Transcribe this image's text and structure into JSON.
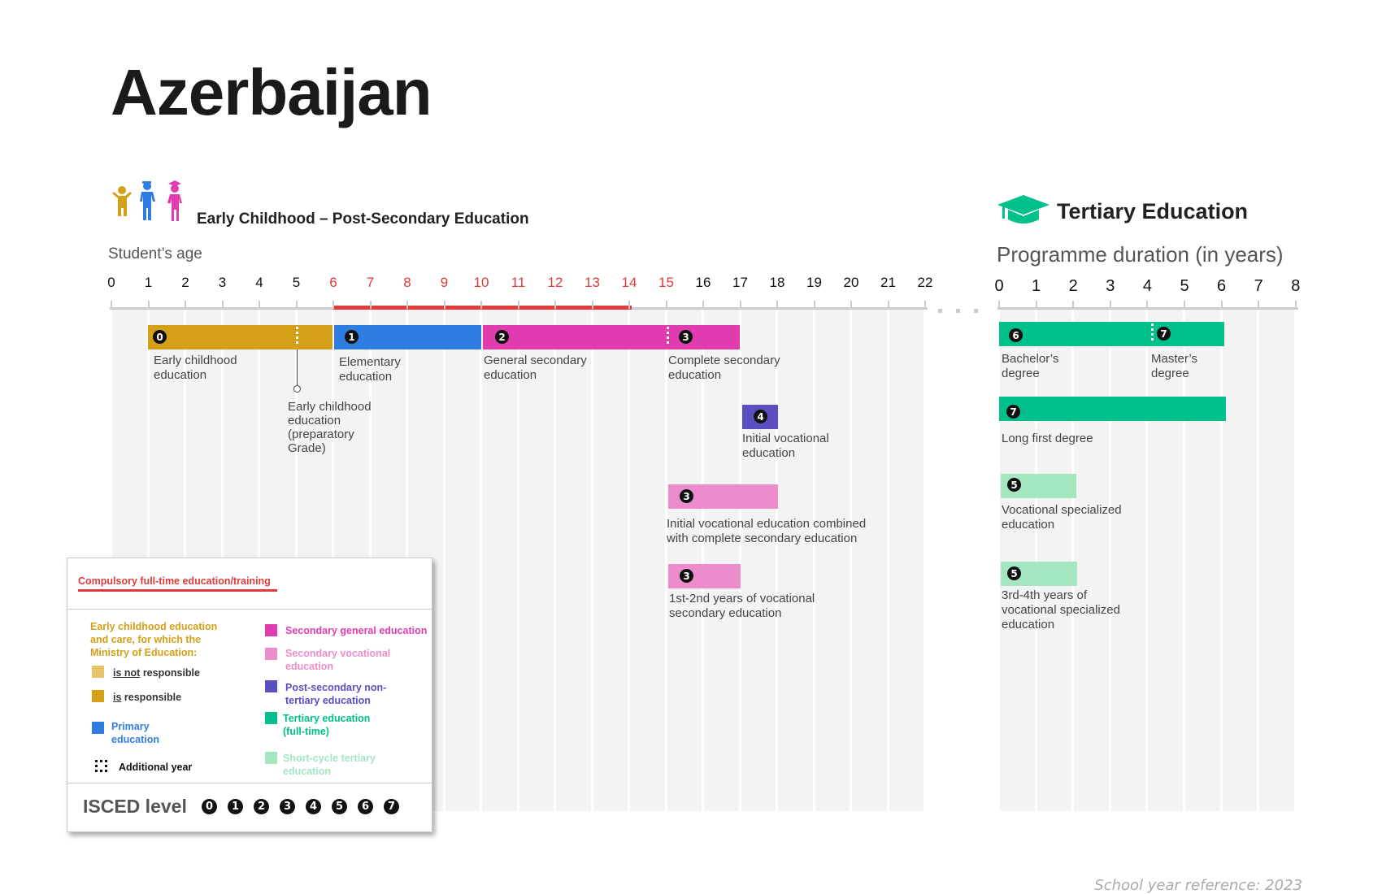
{
  "title": "Azerbaijan",
  "left_section": {
    "heading": "Early Childhood – Post-Secondary Education",
    "axis_label": "Student’s age",
    "ticks": [
      "0",
      "1",
      "2",
      "3",
      "4",
      "5",
      "6",
      "7",
      "8",
      "9",
      "10",
      "11",
      "12",
      "13",
      "14",
      "15",
      "16",
      "17",
      "18",
      "19",
      "20",
      "21",
      "22"
    ],
    "compulsory_range": [
      6,
      14
    ]
  },
  "right_section": {
    "heading": "Tertiary Education",
    "axis_label": "Programme duration (in years)",
    "ticks": [
      "0",
      "1",
      "2",
      "3",
      "4",
      "5",
      "6",
      "7",
      "8"
    ]
  },
  "programmes": {
    "ece": {
      "isced": "0",
      "label": "Early childhood education",
      "start": 1,
      "end": 6
    },
    "ece_prep": {
      "label": "Early childhood education (preparatory Grade)"
    },
    "elementary": {
      "isced": "1",
      "label": "Elementary education",
      "start": 6,
      "end": 10
    },
    "gen_sec": {
      "isced": "2",
      "label": "General secondary education",
      "start": 10,
      "end": 15
    },
    "comp_sec": {
      "isced": "3",
      "label": "Complete secondary education",
      "start": 15,
      "end": 17
    },
    "init_voc": {
      "isced": "4",
      "label": "Initial vocational education",
      "start": 17,
      "end": 18
    },
    "init_voc_comb": {
      "isced": "3",
      "label": "Initial vocational education combined with complete secondary education",
      "start": 15,
      "end": 18
    },
    "voc_sec": {
      "isced": "3",
      "label": "1st-2nd years of vocational secondary education",
      "start": 15,
      "end": 17
    },
    "bachelor": {
      "isced": "6",
      "label": "Bachelor’s degree",
      "start": 0,
      "end": 4
    },
    "master": {
      "isced": "7",
      "label": "Master’s degree",
      "start": 4,
      "end": 6
    },
    "long_first": {
      "isced": "7",
      "label": "Long first degree",
      "start": 0,
      "end": 6
    },
    "voc_spec": {
      "isced": "5",
      "label": "Vocational specialized education",
      "start": 0,
      "end": 2
    },
    "voc_spec_34": {
      "isced": "5",
      "label": "3rd-4th years of vocational specialized education",
      "start": 0,
      "end": 2
    }
  },
  "legend": {
    "compulsory": "Compulsory full-time education/training",
    "ecec_heading": "Early childhood education and care, for which the Ministry of Education:",
    "not_resp_pre": "is not",
    "not_resp_post": " responsible",
    "resp_pre": "is",
    "resp_post": " responsible",
    "primary": "Primary education",
    "additional": "Additional year",
    "sec_gen": "Secondary general education",
    "sec_voc": "Secondary vocational education",
    "post_sec": "Post-secondary non-tertiary education",
    "tertiary": "Tertiary education (full-time)",
    "short_cycle": "Short-cycle tertiary education",
    "isced_label": "ISCED level",
    "isced_levels": [
      "0",
      "1",
      "2",
      "3",
      "4",
      "5",
      "6",
      "7"
    ]
  },
  "footer": "School year reference: 2023",
  "colors": {
    "ece": "#d4a017",
    "ece_light": "#e8c36a",
    "primary": "#2f7de1",
    "sec_gen": "#e03cb0",
    "sec_voc": "#ec8ccc",
    "post_sec": "#5a4fc0",
    "tertiary": "#00c08b",
    "short_cycle": "#a3e6bf",
    "compulsory": "#e03a3a"
  }
}
